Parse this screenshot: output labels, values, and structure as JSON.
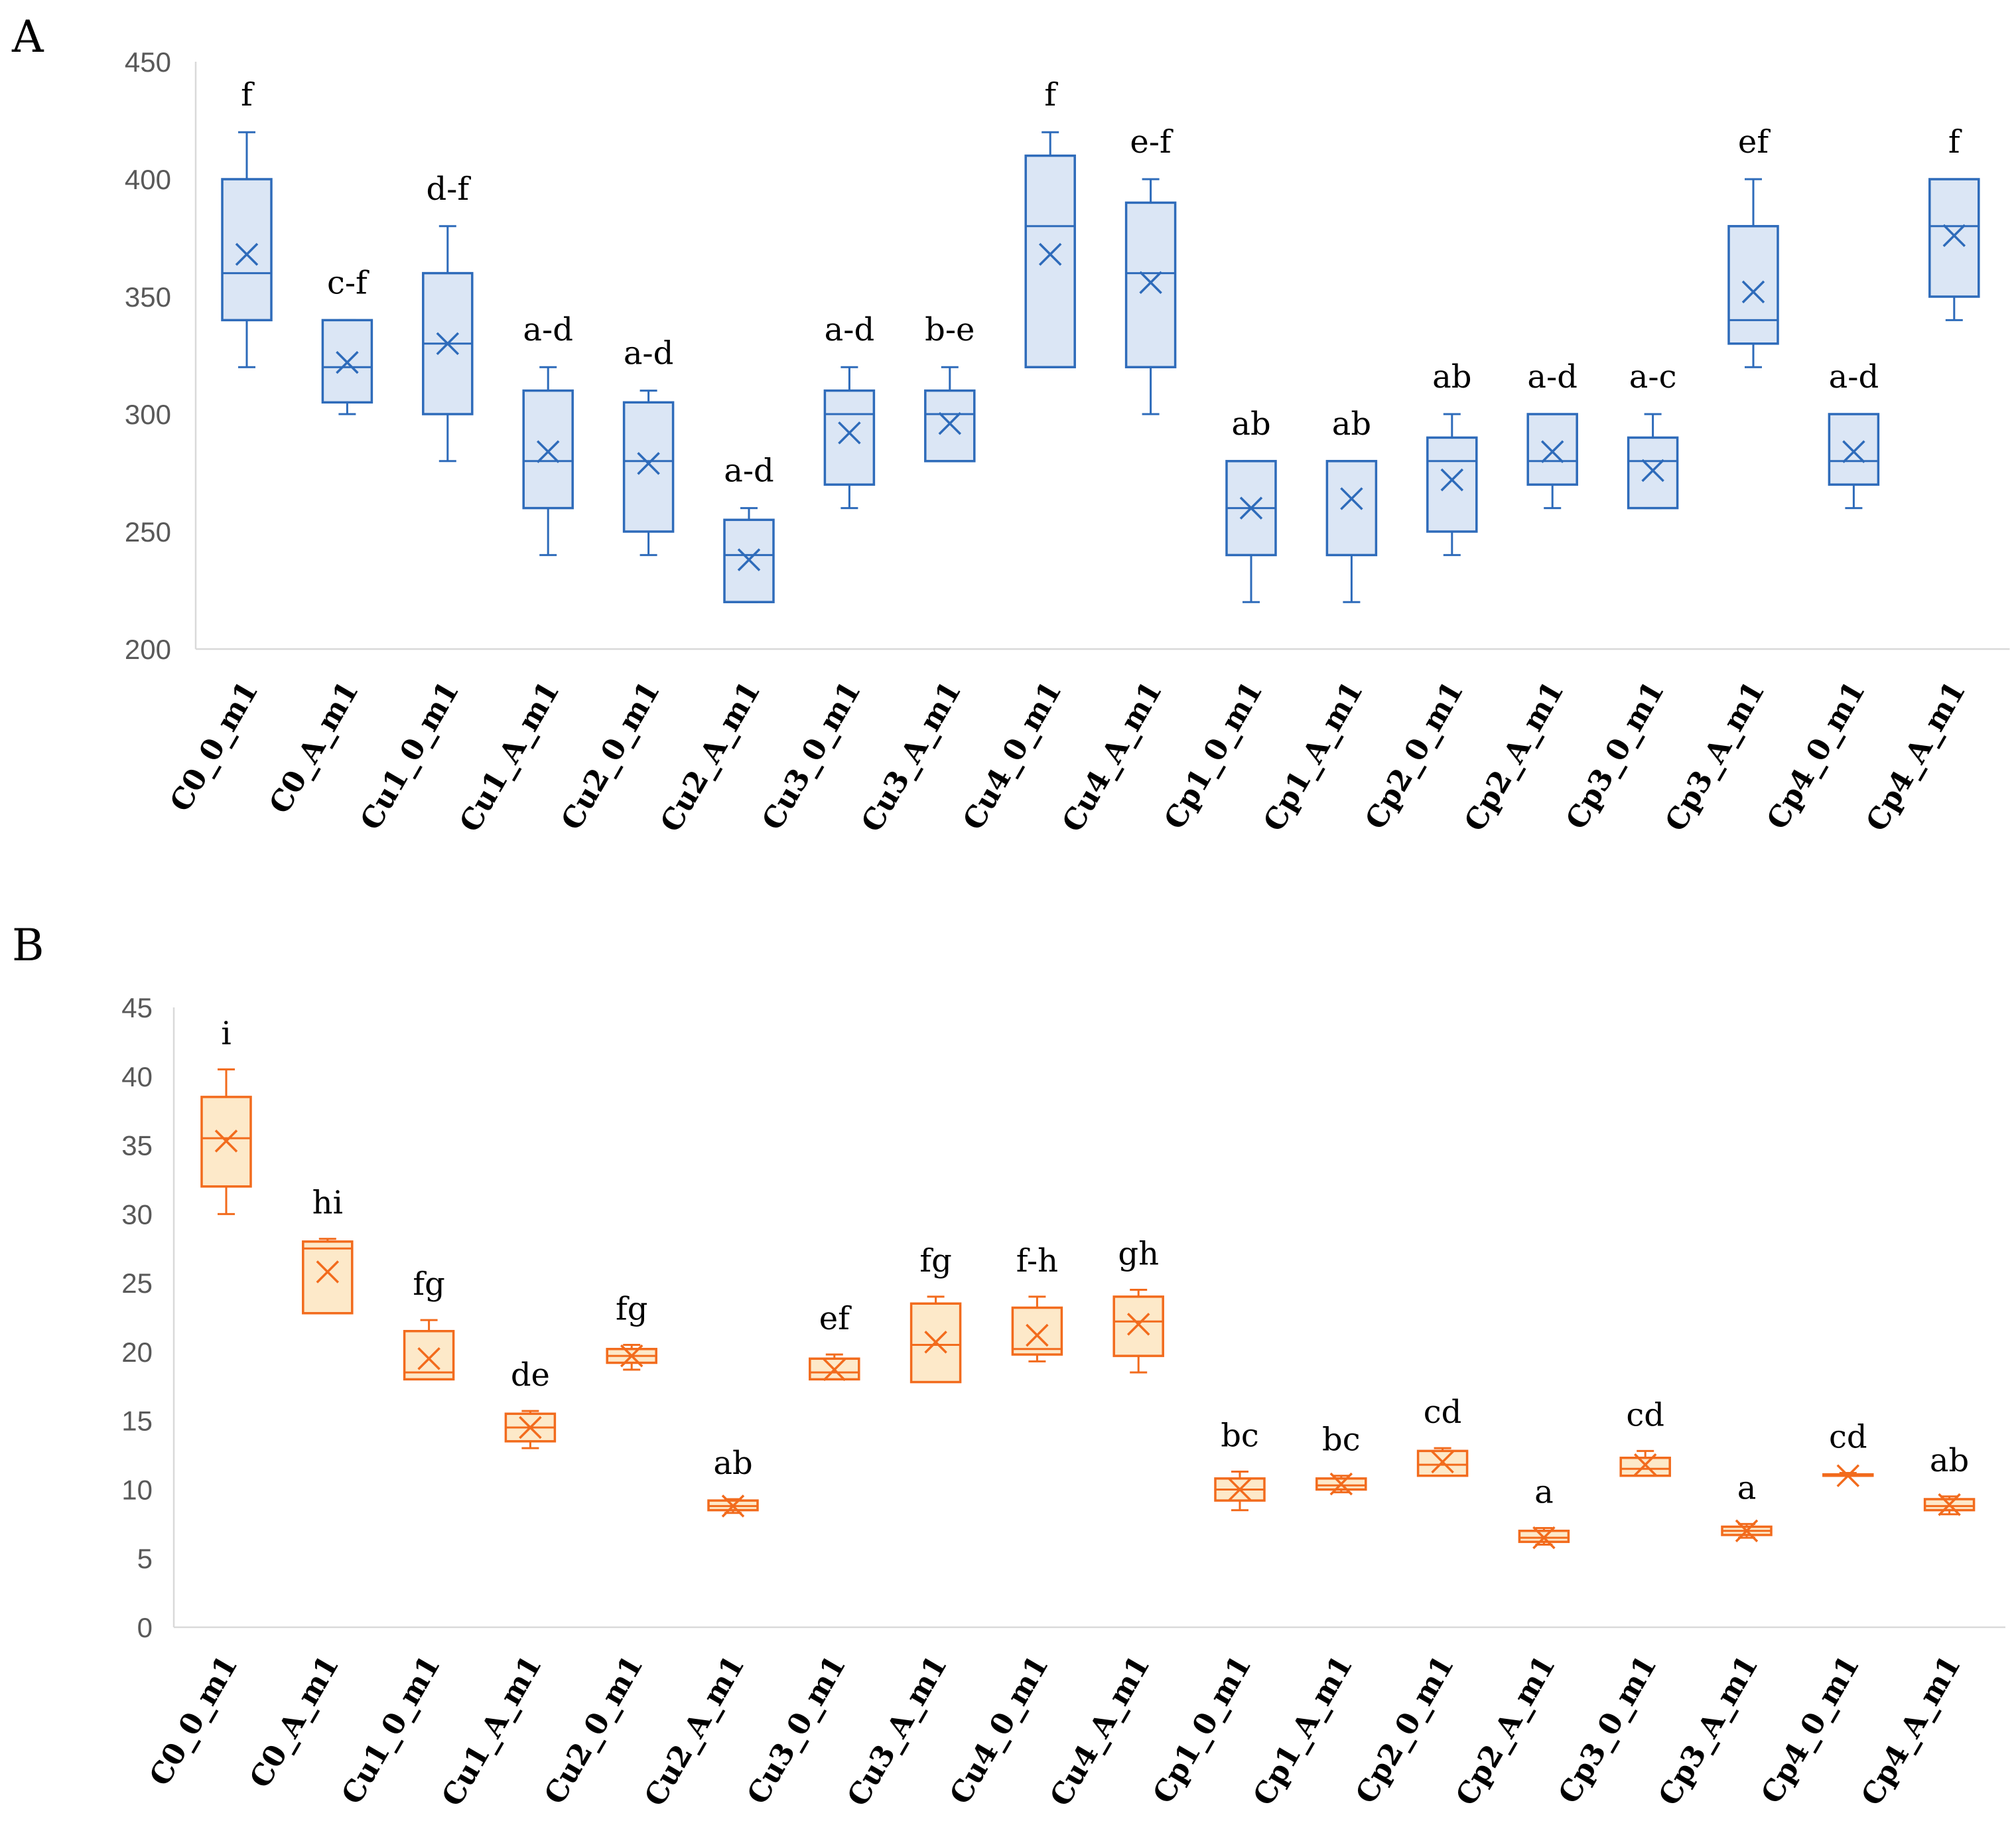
{
  "chart_data": [
    {
      "panel": "A",
      "type": "box",
      "title": "",
      "xlabel": "",
      "ylabel": "",
      "ylim": [
        200,
        450
      ],
      "yticks": [
        200,
        250,
        300,
        350,
        400,
        450
      ],
      "grid": false,
      "color": "#2e6bba",
      "fill": "#dbe6f5",
      "categories": [
        "C0_0_m1",
        "C0_A_m1",
        "Cu1_0_m1",
        "Cu1_A_m1",
        "Cu2_0_m1",
        "Cu2_A_m1",
        "Cu3_0_m1",
        "Cu3_A_m1",
        "Cu4_0_m1",
        "Cu4_A_m1",
        "Cp1_0_m1",
        "Cp1_A_m1",
        "Cp2_0_m1",
        "Cp2_A_m1",
        "Cp3_0_m1",
        "Cp3_A_m1",
        "Cp4_0_m1",
        "Cp4_A_m1"
      ],
      "boxes": [
        {
          "min": 320,
          "q1": 340,
          "median": 360,
          "q3": 400,
          "max": 420,
          "mean": 368,
          "letter": "f"
        },
        {
          "min": 300,
          "q1": 305,
          "median": 320,
          "q3": 340,
          "max": 340,
          "mean": 322,
          "letter": "c-f"
        },
        {
          "min": 280,
          "q1": 300,
          "median": 330,
          "q3": 360,
          "max": 380,
          "mean": 330,
          "letter": "d-f"
        },
        {
          "min": 240,
          "q1": 260,
          "median": 280,
          "q3": 310,
          "max": 320,
          "mean": 284,
          "letter": "a-d"
        },
        {
          "min": 240,
          "q1": 250,
          "median": 280,
          "q3": 305,
          "max": 310,
          "mean": 279,
          "letter": "a-d"
        },
        {
          "min": 220,
          "q1": 220,
          "median": 240,
          "q3": 255,
          "max": 260,
          "mean": 238,
          "letter": "a-d"
        },
        {
          "min": 260,
          "q1": 270,
          "median": 300,
          "q3": 310,
          "max": 320,
          "mean": 292,
          "letter": "a-d"
        },
        {
          "min": 280,
          "q1": 280,
          "median": 300,
          "q3": 310,
          "max": 320,
          "mean": 296,
          "letter": "b-e"
        },
        {
          "min": 320,
          "q1": 320,
          "median": 380,
          "q3": 410,
          "max": 420,
          "mean": 368,
          "letter": "f"
        },
        {
          "min": 300,
          "q1": 320,
          "median": 360,
          "q3": 390,
          "max": 400,
          "mean": 356,
          "letter": "e-f"
        },
        {
          "min": 220,
          "q1": 240,
          "median": 260,
          "q3": 280,
          "max": 280,
          "mean": 260,
          "letter": "ab"
        },
        {
          "min": 220,
          "q1": 240,
          "median": 280,
          "q3": 280,
          "max": 280,
          "mean": 264,
          "letter": "ab"
        },
        {
          "min": 240,
          "q1": 250,
          "median": 280,
          "q3": 290,
          "max": 300,
          "mean": 272,
          "letter": "ab"
        },
        {
          "min": 260,
          "q1": 270,
          "median": 280,
          "q3": 300,
          "max": 300,
          "mean": 284,
          "letter": "a-d"
        },
        {
          "min": 260,
          "q1": 260,
          "median": 280,
          "q3": 290,
          "max": 300,
          "mean": 276,
          "letter": "a-c"
        },
        {
          "min": 320,
          "q1": 330,
          "median": 340,
          "q3": 380,
          "max": 400,
          "mean": 352,
          "letter": "ef"
        },
        {
          "min": 260,
          "q1": 270,
          "median": 280,
          "q3": 300,
          "max": 300,
          "mean": 284,
          "letter": "a-d"
        },
        {
          "min": 340,
          "q1": 350,
          "median": 380,
          "q3": 400,
          "max": 400,
          "mean": 376,
          "letter": "f"
        }
      ]
    },
    {
      "panel": "B",
      "type": "box",
      "title": "",
      "xlabel": "",
      "ylabel": "",
      "ylim": [
        0,
        45
      ],
      "yticks": [
        0,
        5,
        10,
        15,
        20,
        25,
        30,
        35,
        40,
        45
      ],
      "grid": false,
      "color": "#f26b1d",
      "fill": "#fde9c9",
      "categories": [
        "C0_0_m1",
        "C0_A_m1",
        "Cu1_0_m1",
        "Cu1_A_m1",
        "Cu2_0_m1",
        "Cu2_A_m1",
        "Cu3_0_m1",
        "Cu3_A_m1",
        "Cu4_0_m1",
        "Cu4_A_m1",
        "Cp1_0_m1",
        "Cp1_A_m1",
        "Cp2_0_m1",
        "Cp2_A_m1",
        "Cp3_0_m1",
        "Cp3_A_m1",
        "Cp4_0_m1",
        "Cp4_A_m1"
      ],
      "boxes": [
        {
          "min": 30,
          "q1": 32,
          "median": 35.5,
          "q3": 38.5,
          "max": 40.5,
          "mean": 35.3,
          "letter": "i"
        },
        {
          "min": 22.8,
          "q1": 22.8,
          "median": 27.5,
          "q3": 28,
          "max": 28.2,
          "mean": 25.8,
          "letter": "hi"
        },
        {
          "min": 18,
          "q1": 18,
          "median": 18.5,
          "q3": 21.5,
          "max": 22.3,
          "mean": 19.5,
          "letter": "fg"
        },
        {
          "min": 13,
          "q1": 13.5,
          "median": 14.5,
          "q3": 15.5,
          "max": 15.7,
          "mean": 14.5,
          "letter": "de"
        },
        {
          "min": 18.7,
          "q1": 19.2,
          "median": 19.7,
          "q3": 20.2,
          "max": 20.5,
          "mean": 19.7,
          "letter": "fg"
        },
        {
          "min": 8.3,
          "q1": 8.5,
          "median": 8.8,
          "q3": 9.2,
          "max": 9.3,
          "mean": 8.8,
          "letter": "ab"
        },
        {
          "min": 18,
          "q1": 18,
          "median": 18.5,
          "q3": 19.5,
          "max": 19.8,
          "mean": 18.7,
          "letter": "ef"
        },
        {
          "min": 17.8,
          "q1": 17.8,
          "median": 20.5,
          "q3": 23.5,
          "max": 24,
          "mean": 20.7,
          "letter": "fg"
        },
        {
          "min": 19.3,
          "q1": 19.8,
          "median": 20.2,
          "q3": 23.2,
          "max": 24,
          "mean": 21.2,
          "letter": "f-h"
        },
        {
          "min": 18.5,
          "q1": 19.7,
          "median": 22.2,
          "q3": 24,
          "max": 24.5,
          "mean": 22,
          "letter": "gh"
        },
        {
          "min": 8.5,
          "q1": 9.2,
          "median": 10,
          "q3": 10.8,
          "max": 11.3,
          "mean": 10,
          "letter": "bc"
        },
        {
          "min": 9.8,
          "q1": 10,
          "median": 10.3,
          "q3": 10.8,
          "max": 11,
          "mean": 10.4,
          "letter": "bc"
        },
        {
          "min": 11,
          "q1": 11,
          "median": 11.8,
          "q3": 12.8,
          "max": 13,
          "mean": 12,
          "letter": "cd"
        },
        {
          "min": 6,
          "q1": 6.2,
          "median": 6.5,
          "q3": 7,
          "max": 7.2,
          "mean": 6.5,
          "letter": "a"
        },
        {
          "min": 11,
          "q1": 11,
          "median": 11.5,
          "q3": 12.3,
          "max": 12.8,
          "mean": 11.8,
          "letter": "cd"
        },
        {
          "min": 6.5,
          "q1": 6.7,
          "median": 7,
          "q3": 7.3,
          "max": 7.5,
          "mean": 7,
          "letter": "a"
        },
        {
          "min": 11,
          "q1": 11,
          "median": 11,
          "q3": 11.1,
          "max": 11.2,
          "mean": 11,
          "letter": "cd"
        },
        {
          "min": 8.2,
          "q1": 8.5,
          "median": 8.8,
          "q3": 9.3,
          "max": 9.5,
          "mean": 8.9,
          "letter": "ab"
        }
      ]
    }
  ]
}
